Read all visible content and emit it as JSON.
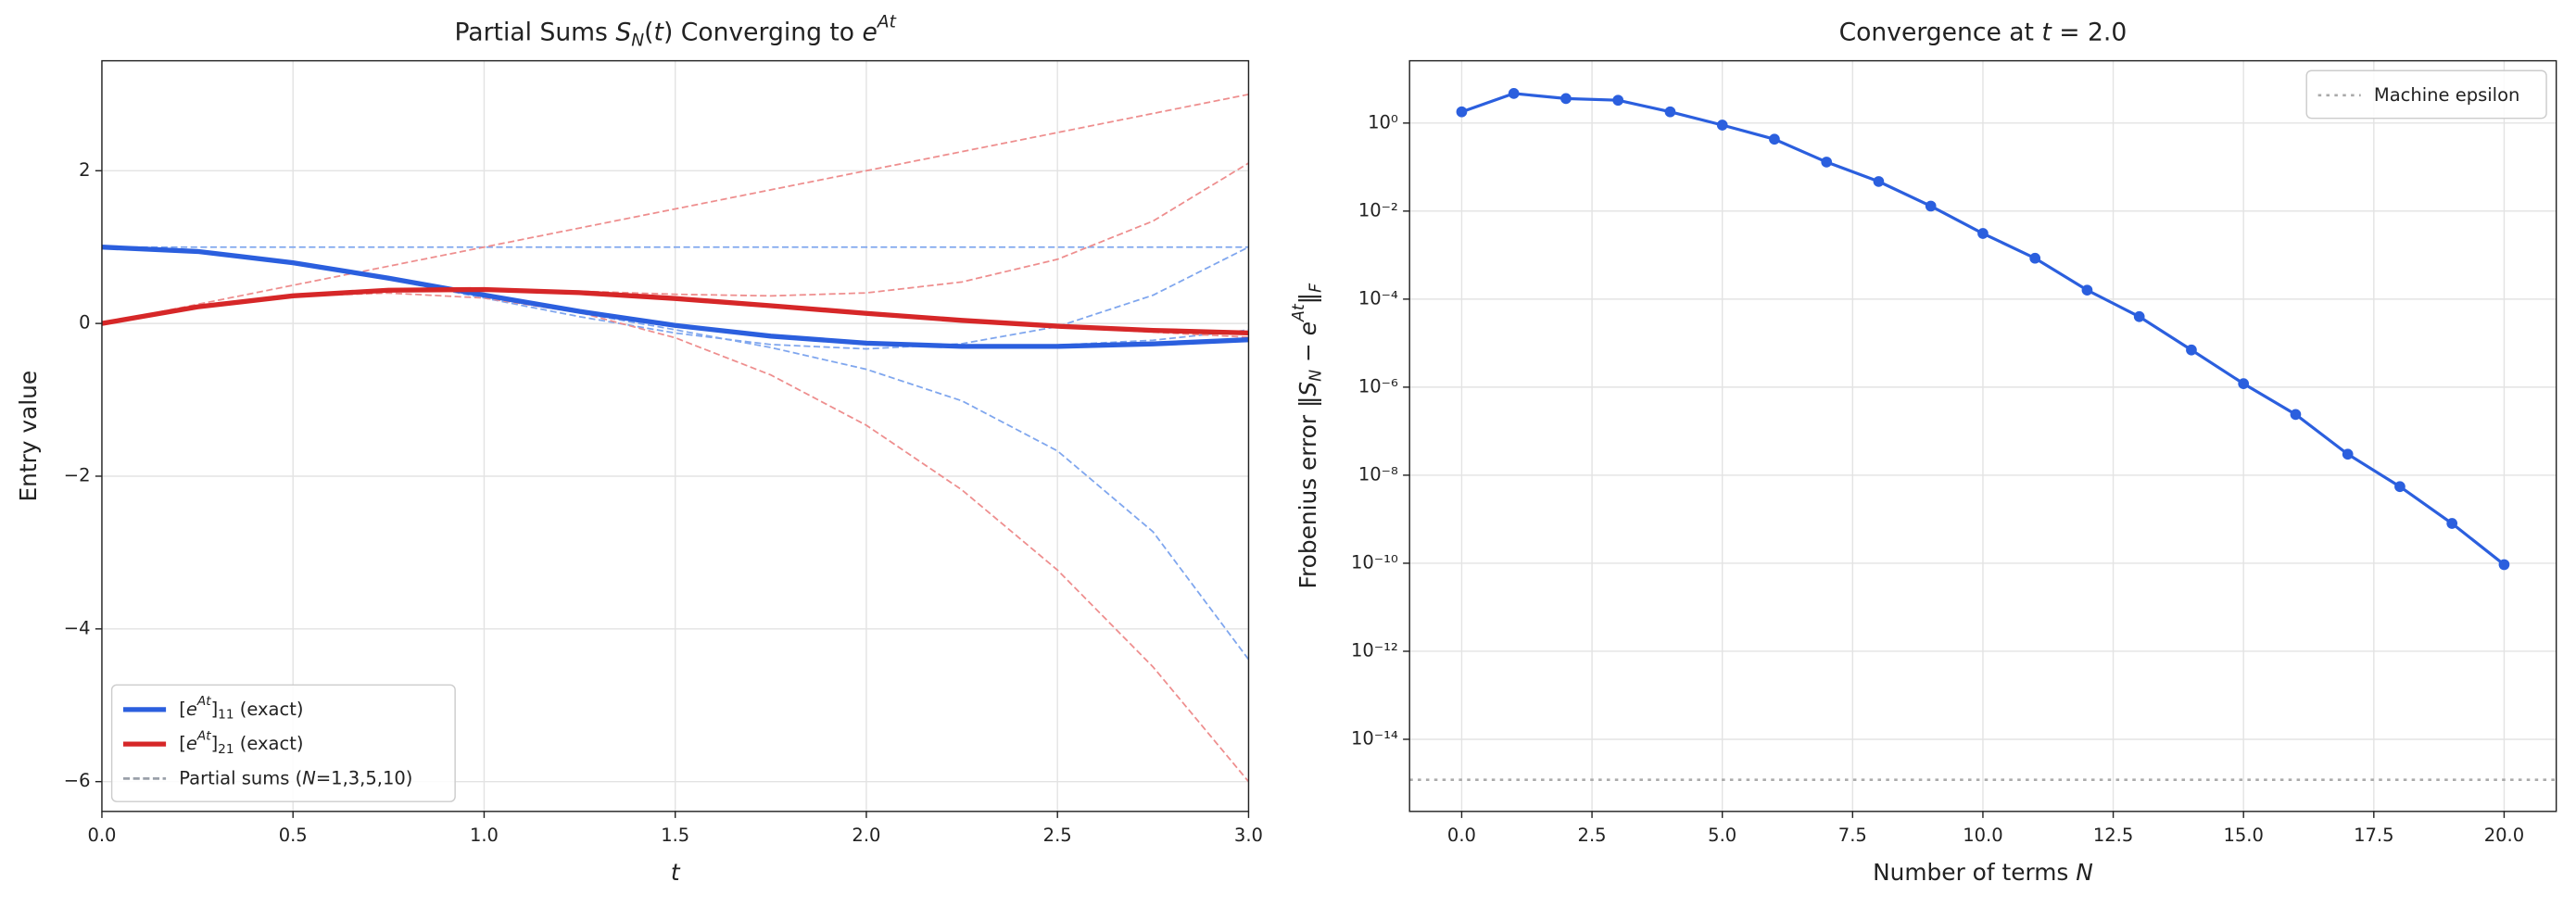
{
  "chart_data": [
    {
      "type": "line",
      "title": [
        {
          "text": "Partial Sums "
        },
        {
          "text": "S",
          "fmt": "i"
        },
        {
          "text": "N",
          "fmt": "isub"
        },
        {
          "text": "("
        },
        {
          "text": "t",
          "fmt": "i"
        },
        {
          "text": ") Converging to "
        },
        {
          "text": "e",
          "fmt": "i"
        },
        {
          "text": "At",
          "fmt": "isup"
        }
      ],
      "x_label": [
        {
          "text": "t",
          "fmt": "i"
        }
      ],
      "y_label": [
        {
          "text": "Entry value"
        }
      ],
      "x": [
        0,
        0.25,
        0.5,
        0.75,
        1,
        1.25,
        1.5,
        1.75,
        2,
        2.25,
        2.5,
        2.75,
        3
      ],
      "xlim": [
        0,
        3
      ],
      "xticks": [
        {
          "value": 0,
          "label": "0.0"
        },
        {
          "value": 0.5,
          "label": "0.5"
        },
        {
          "value": 1,
          "label": "1.0"
        },
        {
          "value": 1.5,
          "label": "1.5"
        },
        {
          "value": 2,
          "label": "2.0"
        },
        {
          "value": 2.5,
          "label": "2.5"
        },
        {
          "value": 3,
          "label": "3.0"
        }
      ],
      "ylim": [
        -6.39,
        3.44
      ],
      "yticks": [
        {
          "value": -6,
          "label": "−6"
        },
        {
          "value": -4,
          "label": "−4"
        },
        {
          "value": -2,
          "label": "−2"
        },
        0,
        2
      ],
      "grid": true,
      "legend": "lower left",
      "series": [
        {
          "name": [
            {
              "text": "["
            },
            {
              "text": "e",
              "fmt": "i"
            },
            {
              "text": "At",
              "fmt": "isup"
            },
            {
              "text": "]"
            },
            {
              "text": "11",
              "fmt": "sub"
            },
            {
              "text": " (exact)"
            }
          ],
          "color": "#2b5fde",
          "width": 3,
          "values": [
            1,
            0.943,
            0.7954,
            0.5935,
            0.3712,
            0.1574,
            -0.0261,
            -0.1662,
            -0.2575,
            -0.3001,
            -0.3004,
            -0.2678,
            -0.2131
          ]
        },
        {
          "name": [
            {
              "text": "["
            },
            {
              "text": "e",
              "fmt": "i"
            },
            {
              "text": "At",
              "fmt": "isup"
            },
            {
              "text": "]"
            },
            {
              "text": "21",
              "fmt": "sub"
            },
            {
              "text": " (exact)"
            }
          ],
          "color": "#d62728",
          "width": 3,
          "values": [
            0,
            0.2166,
            0.3617,
            0.435,
            0.4445,
            0.4033,
            0.3271,
            0.232,
            0.1323,
            0.0404,
            -0.0357,
            -0.091,
            -0.1241
          ]
        }
      ],
      "partial_sums": {
        "name": [
          {
            "text": "Partial sums ("
          },
          {
            "text": "N",
            "fmt": "i"
          },
          {
            "text": "=1,3,5,10)"
          }
        ],
        "color": "#9aa0aa",
        "series": [
          {
            "color": "#7fa6ee",
            "values": [
              1,
              1,
              1,
              1,
              1,
              1,
              1,
              1,
              1,
              1,
              1,
              1,
              1
            ]
          },
          {
            "color": "#7fa6ee",
            "values": [
              1,
              0.9427,
              0.7917,
              0.5781,
              0.3333,
              0.0885,
              -0.125,
              -0.276,
              -0.3333,
              -0.2656,
              -0.0417,
              0.3698,
              1
            ]
          },
          {
            "color": "#7fa6ee",
            "values": [
              1,
              0.943,
              0.7953,
              0.5926,
              0.3667,
              0.1394,
              -0.0828,
              -0.3151,
              -0.6,
              -1.0132,
              -1.6693,
              -2.7282,
              -4.4
            ]
          },
          {
            "color": "#7fa6ee",
            "values": [
              1,
              0.943,
              0.7954,
              0.5935,
              0.3711,
              0.1574,
              -0.0265,
              -0.1661,
              -0.256,
              -0.2949,
              -0.2837,
              -0.2195,
              -0.086
            ]
          },
          {
            "color": "#ee8e8e",
            "values": [
              0,
              0.25,
              0.5,
              0.75,
              1,
              1.25,
              1.5,
              1.75,
              2,
              2.25,
              2.5,
              2.75,
              3
            ]
          },
          {
            "color": "#ee8e8e",
            "values": [
              0,
              0.2161,
              0.3542,
              0.3984,
              0.3333,
              0.1432,
              -0.1875,
              -0.6745,
              -1.3333,
              -2.1797,
              -3.2292,
              -4.4974,
              -6
            ]
          },
          {
            "color": "#ee8e8e",
            "values": [
              0,
              0.2166,
              0.3617,
              0.436,
              0.45,
              0.4229,
              0.382,
              0.3611,
              0.4,
              0.5434,
              0.8398,
              1.3408,
              2.1
            ]
          },
          {
            "color": "#ee8e8e",
            "values": [
              0,
              0.2166,
              0.3617,
              0.435,
              0.4445,
              0.4033,
              0.3269,
              0.2316,
              0.1315,
              0.0375,
              -0.0442,
              -0.1138,
              -0.18
            ]
          }
        ]
      }
    },
    {
      "type": "line",
      "scale": "log",
      "title": [
        {
          "text": "Convergence at "
        },
        {
          "text": "t",
          "fmt": "i"
        },
        {
          "text": " = 2.0"
        }
      ],
      "x_label": [
        {
          "text": "Number of terms "
        },
        {
          "text": "N",
          "fmt": "i"
        }
      ],
      "y_label": [
        {
          "text": "Frobenius error ‖"
        },
        {
          "text": "S",
          "fmt": "i"
        },
        {
          "text": "N",
          "fmt": "isub"
        },
        {
          "text": " − "
        },
        {
          "text": "e",
          "fmt": "i"
        },
        {
          "text": "At",
          "fmt": "isup"
        },
        {
          "text": "‖"
        },
        {
          "text": "F",
          "fmt": "isub"
        }
      ],
      "x": [
        0,
        1,
        2,
        3,
        4,
        5,
        6,
        7,
        8,
        9,
        10,
        11,
        12,
        13,
        14,
        15,
        16,
        17,
        18,
        19,
        20
      ],
      "xlim": [
        -1,
        21
      ],
      "xticks": [
        {
          "value": 0,
          "label": "0.0"
        },
        {
          "value": 2.5,
          "label": "2.5"
        },
        {
          "value": 5,
          "label": "5.0"
        },
        {
          "value": 7.5,
          "label": "7.5"
        },
        {
          "value": 10,
          "label": "10.0"
        },
        {
          "value": 12.5,
          "label": "12.5"
        },
        {
          "value": 15,
          "label": "15.0"
        },
        {
          "value": 17.5,
          "label": "17.5"
        },
        {
          "value": 20,
          "label": "20.0"
        }
      ],
      "ylim": [
        2.3e-16,
        26
      ],
      "yticks": [
        {
          "value": 1,
          "label": "10⁰"
        },
        {
          "value": 0.01,
          "label": "10⁻²"
        },
        {
          "value": 0.0001,
          "label": "10⁻⁴"
        },
        {
          "value": 1e-06,
          "label": "10⁻⁶"
        },
        {
          "value": 1e-08,
          "label": "10⁻⁸"
        },
        {
          "value": 1e-10,
          "label": "10⁻¹⁰"
        },
        {
          "value": 1e-12,
          "label": "10⁻¹²"
        },
        {
          "value": 1e-14,
          "label": "10⁻¹⁴"
        }
      ],
      "grid": true,
      "legend": "upper right",
      "series": [
        {
          "color": "#2b5fde",
          "width": 1.8,
          "marker": "circle",
          "values": [
            1.8,
            4.7,
            3.6,
            3.3,
            1.8,
            0.9,
            0.43,
            0.13,
            0.047,
            0.013,
            0.0031,
            0.00085,
            0.00016,
            4e-05,
            7e-06,
            1.2e-06,
            2.4e-07,
            3e-08,
            5.5e-09,
            8e-10,
            9.3e-11
          ]
        }
      ],
      "reference_line": {
        "name": [
          {
            "text": "Machine epsilon"
          }
        ],
        "value": 1.2e-15,
        "color": "#aaaaaa"
      }
    }
  ]
}
